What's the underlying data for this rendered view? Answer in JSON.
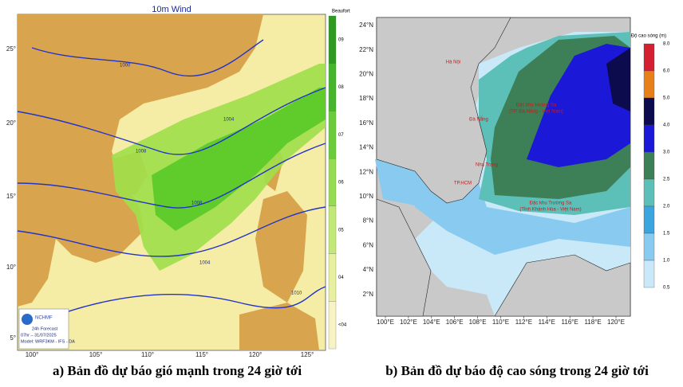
{
  "left_map": {
    "title": "10m Wind",
    "scale_title": "Beaufort",
    "scale_labels": [
      "09",
      "08",
      "07",
      "06",
      "05",
      "04",
      "<04"
    ],
    "lat_labels": [
      "25°",
      "20°",
      "15°",
      "10°",
      "5°"
    ],
    "lon_labels": [
      "100°",
      "105°",
      "110°",
      "115°",
      "120°",
      "125°"
    ],
    "isobar_labels": [
      "1000",
      "1004",
      "1008",
      "1008",
      "1004",
      "1010"
    ],
    "logo": {
      "brand": "NCHMF",
      "lines": [
        "24h Forecast",
        "07hr – 31/07/2025",
        "Model: WRF3KM - IFS - DA"
      ]
    }
  },
  "right_map": {
    "scale_title": "Độ cao sóng (m)",
    "scale_labels": [
      "8.0",
      "6.0",
      "5.0",
      "4.0",
      "3.0",
      "2.5",
      "2.0",
      "1.5",
      "1.0",
      "0.5"
    ],
    "scale_colors": [
      "#d42030",
      "#e8801a",
      "#0b0b4e",
      "#1c18d8",
      "#3d7f56",
      "#5cbfb8",
      "#3aa5de",
      "#89cbf0",
      "#c9e9f8"
    ],
    "lat_labels": [
      "24°N",
      "22°N",
      "20°N",
      "18°N",
      "16°N",
      "14°N",
      "12°N",
      "10°N",
      "8°N",
      "6°N",
      "4°N",
      "2°N"
    ],
    "lon_labels": [
      "100°E",
      "102°E",
      "104°E",
      "106°E",
      "108°E",
      "110°E",
      "112°E",
      "114°E",
      "116°E",
      "118°E",
      "120°E"
    ],
    "places": [
      "Hà Nội",
      "Đà Nẵng",
      "Nha Trang",
      "TP.HCM",
      "Đặc khu Hoàng Sa",
      "(TP. Đà Nẵng - Việt Nam)",
      "Đặc khu Trường Sa",
      "(Tỉnh Khánh Hòa - Việt Nam)"
    ]
  },
  "captions": [
    "a) Bản đồ dự báo gió mạnh trong 24 giờ tới",
    "b) Bản đồ dự báo độ cao sóng trong 24 giờ tới"
  ]
}
